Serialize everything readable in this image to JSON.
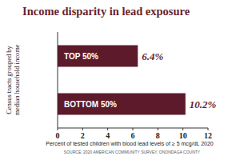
{
  "chart_data": {
    "type": "bar",
    "orientation": "horizontal",
    "title": "Income disparity in lead exposure",
    "ylabel": "Census tracts grouped by median household income",
    "xlabel": "Percent of tested children with blood lead levels of ≥ 5 mcg/dL 2020",
    "source": "SOURCE: 2020 AMERICAN COMMUNITY SURVEY, ONONDAGA COUNTY",
    "categories": [
      "TOP 50%",
      "BOTTOM 50%"
    ],
    "values": [
      6.4,
      10.2
    ],
    "value_labels": [
      "6.4%",
      "10.2%"
    ],
    "data_labels": true,
    "color": "#5c1a2b",
    "xlim": [
      0,
      12
    ],
    "xticks": [
      0,
      2,
      4,
      6,
      8,
      10,
      12
    ],
    "grid": false
  }
}
